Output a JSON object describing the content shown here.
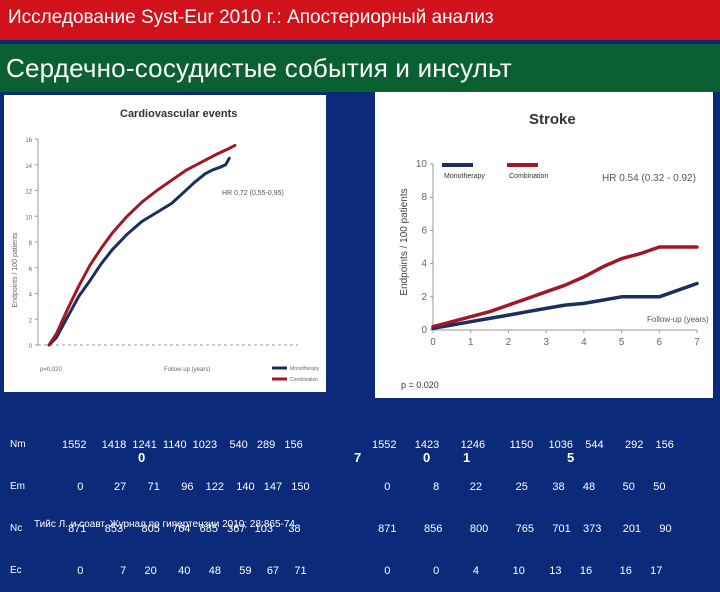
{
  "header": {
    "title": "Исследование Syst-Eur 2010 г.: Апостериорный анализ",
    "subtitle": "Сердечно-сосудистые события и инсульт"
  },
  "colors": {
    "header_bg": "#d1121b",
    "subheader_bg": "#0a6030",
    "page_bg": "#0b2a7a",
    "monotherapy": "#1b2f5e",
    "combination": "#a01826"
  },
  "chart_data": [
    {
      "type": "line",
      "title": "Cardiovascular events",
      "ylabel": "Endpoints / 100 patients",
      "xlabel": "Follow-up (years)",
      "xlim": [
        0,
        7
      ],
      "ylim": [
        0,
        16
      ],
      "yticks": [
        "0",
        "2",
        "4",
        "6",
        "8",
        "10",
        "12",
        "14",
        "16"
      ],
      "hr_text": "HR 0,72 (0,55-0,95)",
      "p_text": "p=0,020",
      "legend": [
        "Monotherapy",
        "Combination"
      ],
      "series": [
        {
          "name": "Monotherapy",
          "color": "#1b2f5e",
          "x": [
            0.3,
            0.5,
            0.8,
            1.1,
            1.4,
            1.7,
            2.0,
            2.4,
            2.8,
            3.2,
            3.6,
            3.9,
            4.2,
            4.5,
            4.7,
            4.9,
            5.05,
            5.15
          ],
          "y": [
            0,
            0.6,
            2.2,
            3.8,
            5.0,
            6.3,
            7.4,
            8.6,
            9.6,
            10.3,
            11.0,
            11.8,
            12.6,
            13.3,
            13.6,
            13.8,
            14.0,
            14.5
          ]
        },
        {
          "name": "Combination",
          "color": "#a01826",
          "x": [
            0.3,
            0.5,
            0.8,
            1.1,
            1.4,
            1.7,
            2.0,
            2.4,
            2.8,
            3.2,
            3.6,
            4.0,
            4.4,
            4.8,
            5.1,
            5.3
          ],
          "y": [
            0,
            0.9,
            2.8,
            4.6,
            6.2,
            7.5,
            8.7,
            10.0,
            11.1,
            12.0,
            12.8,
            13.6,
            14.2,
            14.8,
            15.2,
            15.5
          ]
        }
      ]
    },
    {
      "type": "line",
      "title": "Stroke",
      "ylabel": "Endpoints / 100 patients",
      "xlabel": "Follow-up (years)",
      "xlim": [
        0,
        7
      ],
      "ylim": [
        0,
        10
      ],
      "xticks": [
        "0",
        "1",
        "2",
        "3",
        "4",
        "5",
        "6",
        "7"
      ],
      "yticks": [
        "0",
        "2",
        "4",
        "6",
        "8",
        "10"
      ],
      "hr_text": "HR 0.54 (0.32 - 0.92)",
      "p_text": "p = 0.020",
      "legend": [
        "Monotherapy",
        "Combination"
      ],
      "series": [
        {
          "name": "Monotherapy",
          "color": "#1b2f5e",
          "x": [
            0,
            0.5,
            1,
            1.5,
            2,
            2.5,
            3,
            3.5,
            4,
            4.5,
            5,
            5.5,
            6,
            6.5,
            7
          ],
          "y": [
            0.1,
            0.3,
            0.5,
            0.7,
            0.9,
            1.1,
            1.3,
            1.5,
            1.6,
            1.8,
            2.0,
            2.0,
            2.0,
            2.4,
            2.8
          ]
        },
        {
          "name": "Combination",
          "color": "#a01826",
          "x": [
            0,
            0.5,
            1,
            1.5,
            2,
            2.5,
            3,
            3.5,
            4,
            4.5,
            5,
            5.5,
            6,
            6.5,
            7
          ],
          "y": [
            0.2,
            0.5,
            0.8,
            1.1,
            1.5,
            1.9,
            2.3,
            2.7,
            3.2,
            3.8,
            4.3,
            4.6,
            5.0,
            5.0,
            5.0
          ]
        }
      ]
    }
  ],
  "table": {
    "row_labels": [
      "Nm",
      "Em",
      "Nc",
      "Ec"
    ],
    "left_rows": [
      "1552     1418  1241  1140  1023    540   289   156",
      "     0          27       71       96    122    140   147   150",
      "  871      853      805    764   685   367   103     38",
      "     0            7      20       40      48      59     67     71"
    ],
    "left_year_marks": [
      "0",
      "7"
    ],
    "right_rows": [
      "1552      1423       1246        1150     1036    544       292    156",
      "    0              8          22           25        38      48         50      50",
      "  871         856         800         765      701    373       201      90",
      "    0              0           4           10        13      16         16      17"
    ],
    "right_year_marks": [
      "0",
      "1",
      "5"
    ]
  },
  "citation": "Тийс Л. и соавт. Журнал по гипертензии 2010; 28:865-74"
}
